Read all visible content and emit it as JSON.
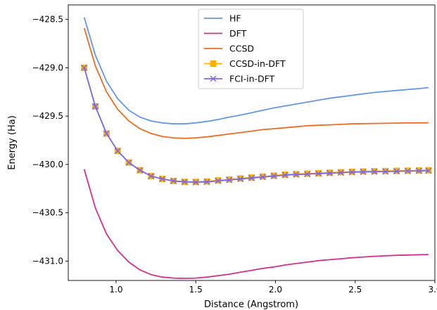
{
  "chart_data": {
    "type": "line",
    "title": "",
    "xlabel": "Distance (Angstrom)",
    "ylabel": "Energy (Ha)",
    "xlim": [
      0.7,
      3.0
    ],
    "ylim": [
      -431.2,
      -428.35
    ],
    "xticks": [
      1.0,
      1.5,
      2.0,
      2.5,
      3.0
    ],
    "xtick_labels": [
      "1.0",
      "1.5",
      "2.0",
      "2.5",
      "3.0"
    ],
    "yticks": [
      -428.5,
      -429.0,
      -429.5,
      -430.0,
      -430.5,
      -431.0
    ],
    "ytick_labels": [
      "−428.5",
      "−429.0",
      "−429.5",
      "−430.0",
      "−430.5",
      "−431.0"
    ],
    "grid": false,
    "legend_position": "top-center",
    "x": [
      0.8,
      0.87,
      0.94,
      1.01,
      1.08,
      1.15,
      1.22,
      1.29,
      1.36,
      1.43,
      1.5,
      1.57,
      1.64,
      1.71,
      1.78,
      1.85,
      1.92,
      1.99,
      2.06,
      2.13,
      2.2,
      2.27,
      2.34,
      2.41,
      2.48,
      2.55,
      2.62,
      2.69,
      2.76,
      2.83,
      2.9,
      2.96
    ],
    "series": [
      {
        "name": "HF",
        "color": "#6495ED",
        "marker": "none",
        "values": [
          -428.48,
          -428.87,
          -429.14,
          -429.32,
          -429.44,
          -429.51,
          -429.55,
          -429.57,
          -429.58,
          -429.58,
          -429.57,
          -429.555,
          -429.535,
          -429.51,
          -429.49,
          -429.465,
          -429.44,
          -429.415,
          -429.395,
          -429.375,
          -429.355,
          -429.335,
          -429.315,
          -429.3,
          -429.285,
          -429.27,
          -429.255,
          -429.245,
          -429.235,
          -429.225,
          -429.215,
          -429.205
        ]
      },
      {
        "name": "DFT",
        "color": "#D62E8C",
        "marker": "none",
        "values": [
          -430.05,
          -430.45,
          -430.72,
          -430.89,
          -431.01,
          -431.09,
          -431.14,
          -431.165,
          -431.175,
          -431.178,
          -431.175,
          -431.165,
          -431.15,
          -431.135,
          -431.115,
          -431.095,
          -431.075,
          -431.06,
          -431.04,
          -431.025,
          -431.01,
          -430.995,
          -430.985,
          -430.975,
          -430.965,
          -430.957,
          -430.95,
          -430.945,
          -430.94,
          -430.937,
          -430.934,
          -430.932
        ]
      },
      {
        "name": "CCSD",
        "color": "#F26B1D",
        "marker": "none",
        "values": [
          -428.59,
          -428.98,
          -429.25,
          -429.43,
          -429.55,
          -429.63,
          -429.68,
          -429.71,
          -429.725,
          -429.73,
          -429.725,
          -429.715,
          -429.7,
          -429.685,
          -429.67,
          -429.655,
          -429.64,
          -429.63,
          -429.62,
          -429.61,
          -429.6,
          -429.595,
          -429.59,
          -429.585,
          -429.58,
          -429.578,
          -429.576,
          -429.574,
          -429.572,
          -429.571,
          -429.57,
          -429.569
        ]
      },
      {
        "name": "CCSD-in-DFT",
        "color": "#FFB000",
        "marker": "square",
        "values": [
          -429.0,
          -429.4,
          -429.68,
          -429.86,
          -429.98,
          -430.06,
          -430.12,
          -430.15,
          -430.17,
          -430.18,
          -430.18,
          -430.175,
          -430.165,
          -430.155,
          -430.145,
          -430.135,
          -430.125,
          -430.115,
          -430.105,
          -430.1,
          -430.095,
          -430.09,
          -430.085,
          -430.08,
          -430.075,
          -430.072,
          -430.07,
          -430.068,
          -430.066,
          -430.064,
          -430.062,
          -430.06
        ]
      },
      {
        "name": "FCI-in-DFT",
        "color": "#7B68EE",
        "marker": "x",
        "values": [
          -429.0,
          -429.4,
          -429.68,
          -429.86,
          -429.98,
          -430.06,
          -430.12,
          -430.15,
          -430.17,
          -430.18,
          -430.185,
          -430.18,
          -430.17,
          -430.16,
          -430.15,
          -430.14,
          -430.13,
          -430.12,
          -430.11,
          -430.105,
          -430.1,
          -430.095,
          -430.09,
          -430.085,
          -430.08,
          -430.077,
          -430.075,
          -430.073,
          -430.071,
          -430.069,
          -430.067,
          -430.065
        ]
      }
    ]
  }
}
